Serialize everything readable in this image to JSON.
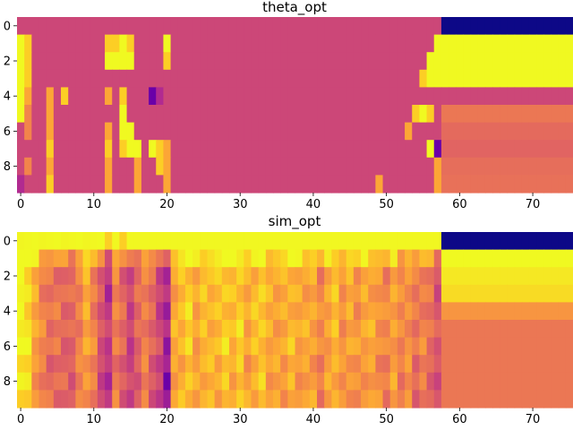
{
  "palette": [
    "#0d0887",
    "#6a00a8",
    "#b12a90",
    "#cc4778",
    "#e16462",
    "#f2844b",
    "#fca636",
    "#fcce25",
    "#f0f921"
  ],
  "chart_data": [
    {
      "type": "heatmap",
      "title": "theta_opt",
      "xlabel": "",
      "ylabel": "",
      "x_ticks": [
        "0",
        "10",
        "20",
        "30",
        "40",
        "50",
        "60",
        "70"
      ],
      "y_ticks": [
        "0",
        "2",
        "4",
        "6",
        "8"
      ],
      "n_cols": 76,
      "n_rows": 10,
      "base_level": 3,
      "col_segments": [
        [
          58,
          76
        ]
      ],
      "row_segments": [
        [
          0,
          1,
          0
        ],
        [
          1,
          4,
          8
        ],
        [
          4,
          5,
          3
        ],
        [
          5,
          7,
          4
        ],
        [
          7,
          10,
          4
        ]
      ],
      "cells": [
        [
          1,
          0,
          8
        ],
        [
          2,
          0,
          8
        ],
        [
          3,
          0,
          8
        ],
        [
          4,
          0,
          8
        ],
        [
          5,
          0,
          8
        ],
        [
          1,
          1,
          7
        ],
        [
          2,
          1,
          7
        ],
        [
          3,
          1,
          7
        ],
        [
          4,
          1,
          8
        ],
        [
          5,
          1,
          7
        ],
        [
          1,
          12,
          7
        ],
        [
          1,
          13,
          7
        ],
        [
          1,
          14,
          8
        ],
        [
          1,
          15,
          7
        ],
        [
          1,
          20,
          8
        ],
        [
          1,
          57,
          8
        ],
        [
          2,
          12,
          8
        ],
        [
          2,
          13,
          8
        ],
        [
          2,
          14,
          8
        ],
        [
          2,
          15,
          8
        ],
        [
          2,
          20,
          7
        ],
        [
          2,
          56,
          8
        ],
        [
          2,
          57,
          8
        ],
        [
          3,
          55,
          7
        ],
        [
          3,
          56,
          8
        ],
        [
          3,
          57,
          8
        ],
        [
          4,
          1,
          6
        ],
        [
          4,
          4,
          6
        ],
        [
          4,
          6,
          7
        ],
        [
          4,
          12,
          6
        ],
        [
          4,
          14,
          7
        ],
        [
          4,
          18,
          1
        ],
        [
          4,
          19,
          2
        ],
        [
          5,
          1,
          5
        ],
        [
          5,
          4,
          6
        ],
        [
          5,
          14,
          8
        ],
        [
          5,
          54,
          7
        ],
        [
          5,
          55,
          8
        ],
        [
          5,
          56,
          7
        ],
        [
          6,
          1,
          5
        ],
        [
          6,
          4,
          6
        ],
        [
          6,
          12,
          6
        ],
        [
          6,
          14,
          8
        ],
        [
          6,
          15,
          8
        ],
        [
          6,
          53,
          6
        ],
        [
          7,
          4,
          7
        ],
        [
          7,
          12,
          7
        ],
        [
          7,
          14,
          7
        ],
        [
          7,
          15,
          8
        ],
        [
          7,
          16,
          8
        ],
        [
          7,
          18,
          8
        ],
        [
          7,
          19,
          7
        ],
        [
          7,
          20,
          6
        ],
        [
          7,
          56,
          8
        ],
        [
          7,
          57,
          1
        ],
        [
          8,
          1,
          5
        ],
        [
          8,
          4,
          6
        ],
        [
          8,
          12,
          6
        ],
        [
          8,
          16,
          6
        ],
        [
          8,
          19,
          7
        ],
        [
          8,
          20,
          6
        ],
        [
          8,
          57,
          6
        ],
        [
          9,
          0,
          2
        ],
        [
          9,
          4,
          7
        ],
        [
          9,
          12,
          6
        ],
        [
          9,
          16,
          6
        ],
        [
          9,
          20,
          6
        ],
        [
          9,
          49,
          6
        ],
        [
          9,
          57,
          6
        ]
      ],
      "color_scale": "plasma"
    },
    {
      "type": "heatmap",
      "title": "sim_opt",
      "xlabel": "",
      "ylabel": "",
      "x_ticks": [
        "0",
        "10",
        "20",
        "30",
        "40",
        "50",
        "60",
        "70"
      ],
      "y_ticks": [
        "0",
        "2",
        "4",
        "6",
        "8"
      ],
      "n_cols": 76,
      "n_rows": 10,
      "col_segments": [
        [
          58,
          76
        ]
      ],
      "row_segments": [
        [
          0,
          1,
          0
        ],
        [
          1,
          2,
          8
        ],
        [
          2,
          3,
          7.6
        ],
        [
          3,
          4,
          7.3
        ],
        [
          4,
          5,
          5.5
        ],
        [
          5,
          10,
          4.6
        ]
      ],
      "profile": [
        8,
        7.5,
        6,
        5,
        4.5,
        4.5,
        4.2,
        4,
        5,
        6,
        5,
        3.5,
        2.5,
        5,
        4,
        3,
        4,
        5,
        4,
        3,
        2,
        6,
        6.5,
        7,
        6,
        6.5,
        6.5,
        6.5,
        7,
        6.5,
        7,
        6,
        6.5,
        7,
        6,
        6,
        6,
        6.5,
        6,
        6,
        6,
        5,
        6,
        6.5,
        5.5,
        6,
        5.5,
        6,
        6,
        5.5,
        5,
        6,
        5,
        5.5,
        4.5,
        5,
        4.5,
        3.5
      ],
      "color_scale": "plasma"
    }
  ]
}
